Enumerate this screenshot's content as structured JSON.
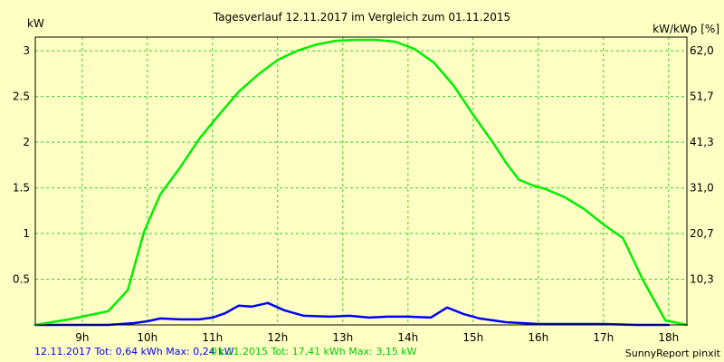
{
  "chart_data": {
    "type": "line",
    "title": "Tagesverlauf 12.11.2017 im Vergleich zum 01.11.2015",
    "y_left_label": "kW",
    "y_right_label": "kW/kWp [%]",
    "x_ticks": [
      "9h",
      "10h",
      "11h",
      "12h",
      "13h",
      "14h",
      "15h",
      "16h",
      "17h",
      "18h"
    ],
    "x_tick_hours": [
      9,
      10,
      11,
      12,
      13,
      14,
      15,
      16,
      17,
      18
    ],
    "x_range": [
      8.28,
      18.28
    ],
    "y_left_ticks": [
      "0.5",
      "1",
      "1.5",
      "2",
      "2.5",
      "3"
    ],
    "y_left_tick_values": [
      0.5,
      1,
      1.5,
      2,
      2.5,
      3
    ],
    "y_right_ticks": [
      "10,3",
      "20,7",
      "31,0",
      "41,3",
      "51,7",
      "62,0"
    ],
    "ylim": [
      0,
      3.15
    ],
    "grid": true,
    "colors": {
      "background": "#ffffc4",
      "grid": "#32cd32",
      "series_2017": "#0000ff",
      "series_2015": "#00ee00"
    },
    "series": [
      {
        "name": "12.11.2017",
        "color": "#0000ff",
        "x": [
          8.28,
          8.8,
          9.4,
          9.8,
          10.0,
          10.2,
          10.5,
          10.8,
          11.0,
          11.2,
          11.4,
          11.6,
          11.85,
          12.1,
          12.4,
          12.8,
          13.1,
          13.4,
          13.7,
          14.0,
          14.35,
          14.6,
          14.85,
          15.1,
          15.5,
          16.0,
          16.5,
          17.0,
          17.5,
          18.0
        ],
        "y": [
          0.0,
          0.0,
          0.0,
          0.02,
          0.04,
          0.07,
          0.06,
          0.06,
          0.08,
          0.13,
          0.21,
          0.2,
          0.24,
          0.16,
          0.1,
          0.09,
          0.1,
          0.08,
          0.09,
          0.09,
          0.08,
          0.19,
          0.12,
          0.07,
          0.03,
          0.01,
          0.01,
          0.01,
          0.0,
          0.0
        ]
      },
      {
        "name": "01.11.2015",
        "color": "#00ee00",
        "x": [
          8.28,
          8.8,
          9.4,
          9.7,
          9.95,
          10.2,
          10.5,
          10.8,
          11.1,
          11.4,
          11.7,
          12.0,
          12.3,
          12.6,
          12.9,
          13.2,
          13.5,
          13.8,
          14.1,
          14.4,
          14.7,
          15.0,
          15.3,
          15.5,
          15.7,
          15.9,
          16.1,
          16.4,
          16.7,
          17.0,
          17.3,
          17.6,
          17.95,
          18.28
        ],
        "y": [
          0.0,
          0.06,
          0.15,
          0.38,
          1.02,
          1.43,
          1.72,
          2.04,
          2.3,
          2.55,
          2.74,
          2.9,
          3.0,
          3.07,
          3.11,
          3.12,
          3.12,
          3.1,
          3.02,
          2.87,
          2.62,
          2.3,
          2.0,
          1.78,
          1.59,
          1.53,
          1.49,
          1.4,
          1.27,
          1.1,
          0.95,
          0.5,
          0.05,
          0.0
        ]
      }
    ]
  },
  "footer": {
    "series_2017_text": "12.11.2017 Tot: 0,64 kWh Max: 0,24 kW",
    "series_2015_text": "01.11.2015 Tot: 17,41 kWh Max: 3,15 kW",
    "credit": "SunnyReport pinxit"
  }
}
